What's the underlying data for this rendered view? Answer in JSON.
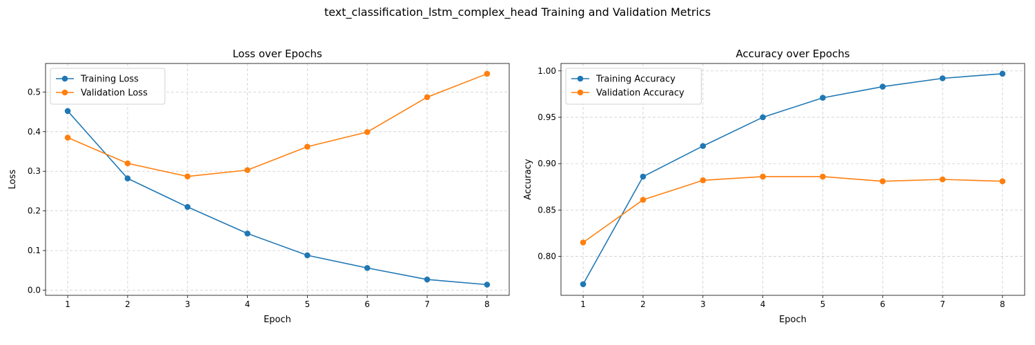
{
  "figure": {
    "suptitle": "text_classification_lstm_complex_head Training and Validation Metrics",
    "colors": {
      "training": "#1f77b4",
      "validation": "#ff7f0e",
      "grid": "#cccccc"
    }
  },
  "chart_data": [
    {
      "type": "line",
      "title": "Loss over Epochs",
      "xlabel": "Epoch",
      "ylabel": "Loss",
      "x": [
        1,
        2,
        3,
        4,
        5,
        6,
        7,
        8
      ],
      "xticks": [
        "1",
        "2",
        "3",
        "4",
        "5",
        "6",
        "7",
        "8"
      ],
      "yticks": [
        "0.0",
        "0.1",
        "0.2",
        "0.3",
        "0.4",
        "0.5"
      ],
      "ytick_values": [
        0.0,
        0.1,
        0.2,
        0.3,
        0.4,
        0.5
      ],
      "xlim": [
        0.63,
        8.37
      ],
      "ylim": [
        -0.013,
        0.572
      ],
      "grid": true,
      "legend_position": "upper-left",
      "series": [
        {
          "name": "Training Loss",
          "color": "#1f77b4",
          "values": [
            0.452,
            0.282,
            0.21,
            0.143,
            0.088,
            0.056,
            0.027,
            0.014
          ]
        },
        {
          "name": "Validation Loss",
          "color": "#ff7f0e",
          "values": [
            0.385,
            0.32,
            0.287,
            0.303,
            0.362,
            0.399,
            0.487,
            0.546
          ]
        }
      ]
    },
    {
      "type": "line",
      "title": "Accuracy over Epochs",
      "xlabel": "Epoch",
      "ylabel": "Accuracy",
      "x": [
        1,
        2,
        3,
        4,
        5,
        6,
        7,
        8
      ],
      "xticks": [
        "1",
        "2",
        "3",
        "4",
        "5",
        "6",
        "7",
        "8"
      ],
      "yticks": [
        "0.80",
        "0.85",
        "0.90",
        "0.95",
        "1.00"
      ],
      "ytick_values": [
        0.8,
        0.85,
        0.9,
        0.95,
        1.0
      ],
      "xlim": [
        0.63,
        8.37
      ],
      "ylim": [
        0.758,
        1.008
      ],
      "grid": true,
      "legend_position": "upper-left",
      "series": [
        {
          "name": "Training Accuracy",
          "color": "#1f77b4",
          "values": [
            0.77,
            0.886,
            0.919,
            0.95,
            0.971,
            0.983,
            0.992,
            0.997
          ]
        },
        {
          "name": "Validation Accuracy",
          "color": "#ff7f0e",
          "values": [
            0.815,
            0.861,
            0.882,
            0.886,
            0.886,
            0.881,
            0.883,
            0.881
          ]
        }
      ]
    }
  ]
}
